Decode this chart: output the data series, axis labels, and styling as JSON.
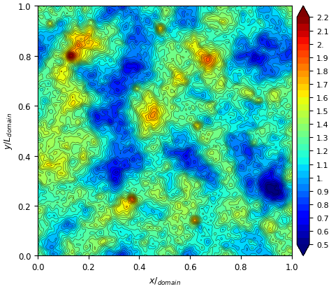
{
  "title": "",
  "xlabel": "x/_{domain}",
  "ylabel": "y/L_{domain}",
  "xlim": [
    0,
    1
  ],
  "ylim": [
    0,
    1
  ],
  "vmin": 0.5,
  "vmax": 2.2,
  "colorbar_ticks": [
    0.5,
    0.6,
    0.7,
    0.8,
    0.9,
    1.0,
    1.1,
    1.2,
    1.3,
    1.4,
    1.5,
    1.6,
    1.7,
    1.8,
    1.9,
    2.0,
    2.1,
    2.2
  ],
  "colorbar_labels": [
    "0.5",
    "0.6",
    "0.7",
    "0.8",
    "0.9",
    "1.",
    "1.1",
    "1.2",
    "1.3",
    "1.4",
    "1.5",
    "1.6",
    "1.7",
    "1.8",
    "1.9",
    "2.",
    "2.1",
    "2.2"
  ],
  "n_contour_levels": 35,
  "colormap": "jet",
  "figsize": [
    4.74,
    4.14
  ],
  "dpi": 100,
  "seed": 42,
  "nx": 256,
  "ny": 256,
  "field_mean": 1.2,
  "field_std": 0.2
}
